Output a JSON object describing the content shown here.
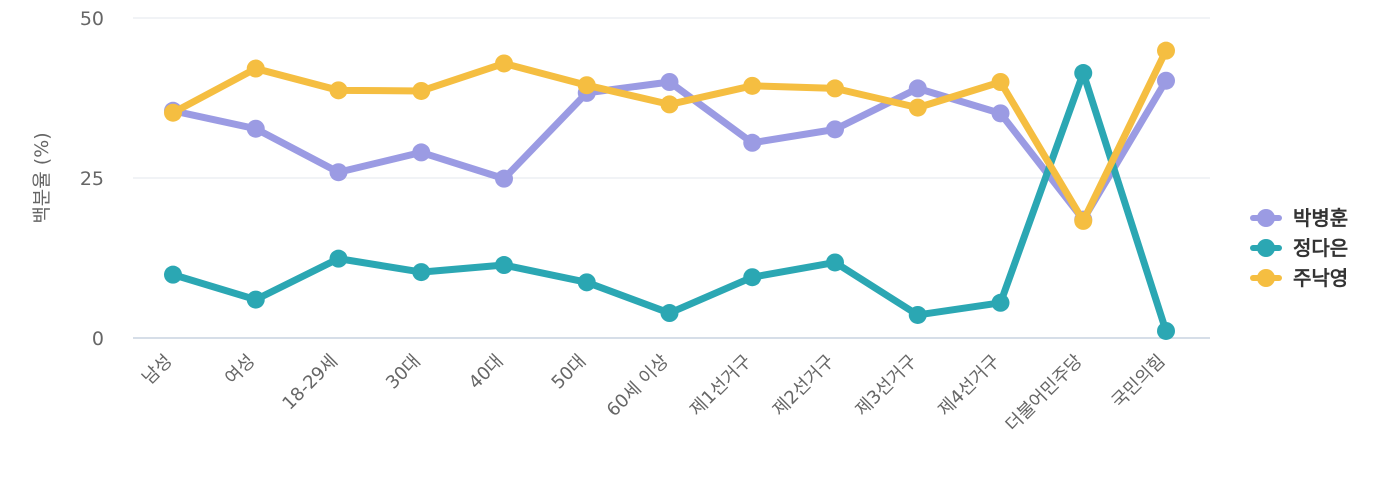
{
  "chart_data": {
    "type": "line",
    "ylabel": "백분율 (%)",
    "ylim": [
      0,
      50
    ],
    "yticks": [
      0,
      25,
      50
    ],
    "grid": true,
    "legend_position": "right",
    "categories": [
      "남성",
      "여성",
      "18-29세",
      "30대",
      "40대",
      "50대",
      "60세 이상",
      "제1선거구",
      "제2선거구",
      "제3선거구",
      "제4선거구",
      "더불어민주당",
      "국민의힘"
    ],
    "series": [
      {
        "name": "박병훈",
        "color": "#9b9be3",
        "values": [
          35.5,
          32.7,
          25.9,
          29.0,
          24.9,
          38.3,
          40.0,
          30.5,
          32.6,
          39.0,
          35.1,
          18.5,
          40.2
        ]
      },
      {
        "name": "정다은",
        "color": "#2ba7b3",
        "values": [
          9.9,
          6.0,
          12.4,
          10.3,
          11.4,
          8.7,
          3.9,
          9.5,
          11.8,
          3.6,
          5.5,
          41.4,
          1.1
        ]
      },
      {
        "name": "주낙영",
        "color": "#f5be41",
        "values": [
          35.2,
          42.1,
          38.7,
          38.6,
          42.9,
          39.5,
          36.5,
          39.4,
          39.0,
          36.0,
          40.0,
          18.3,
          44.9
        ]
      }
    ]
  }
}
